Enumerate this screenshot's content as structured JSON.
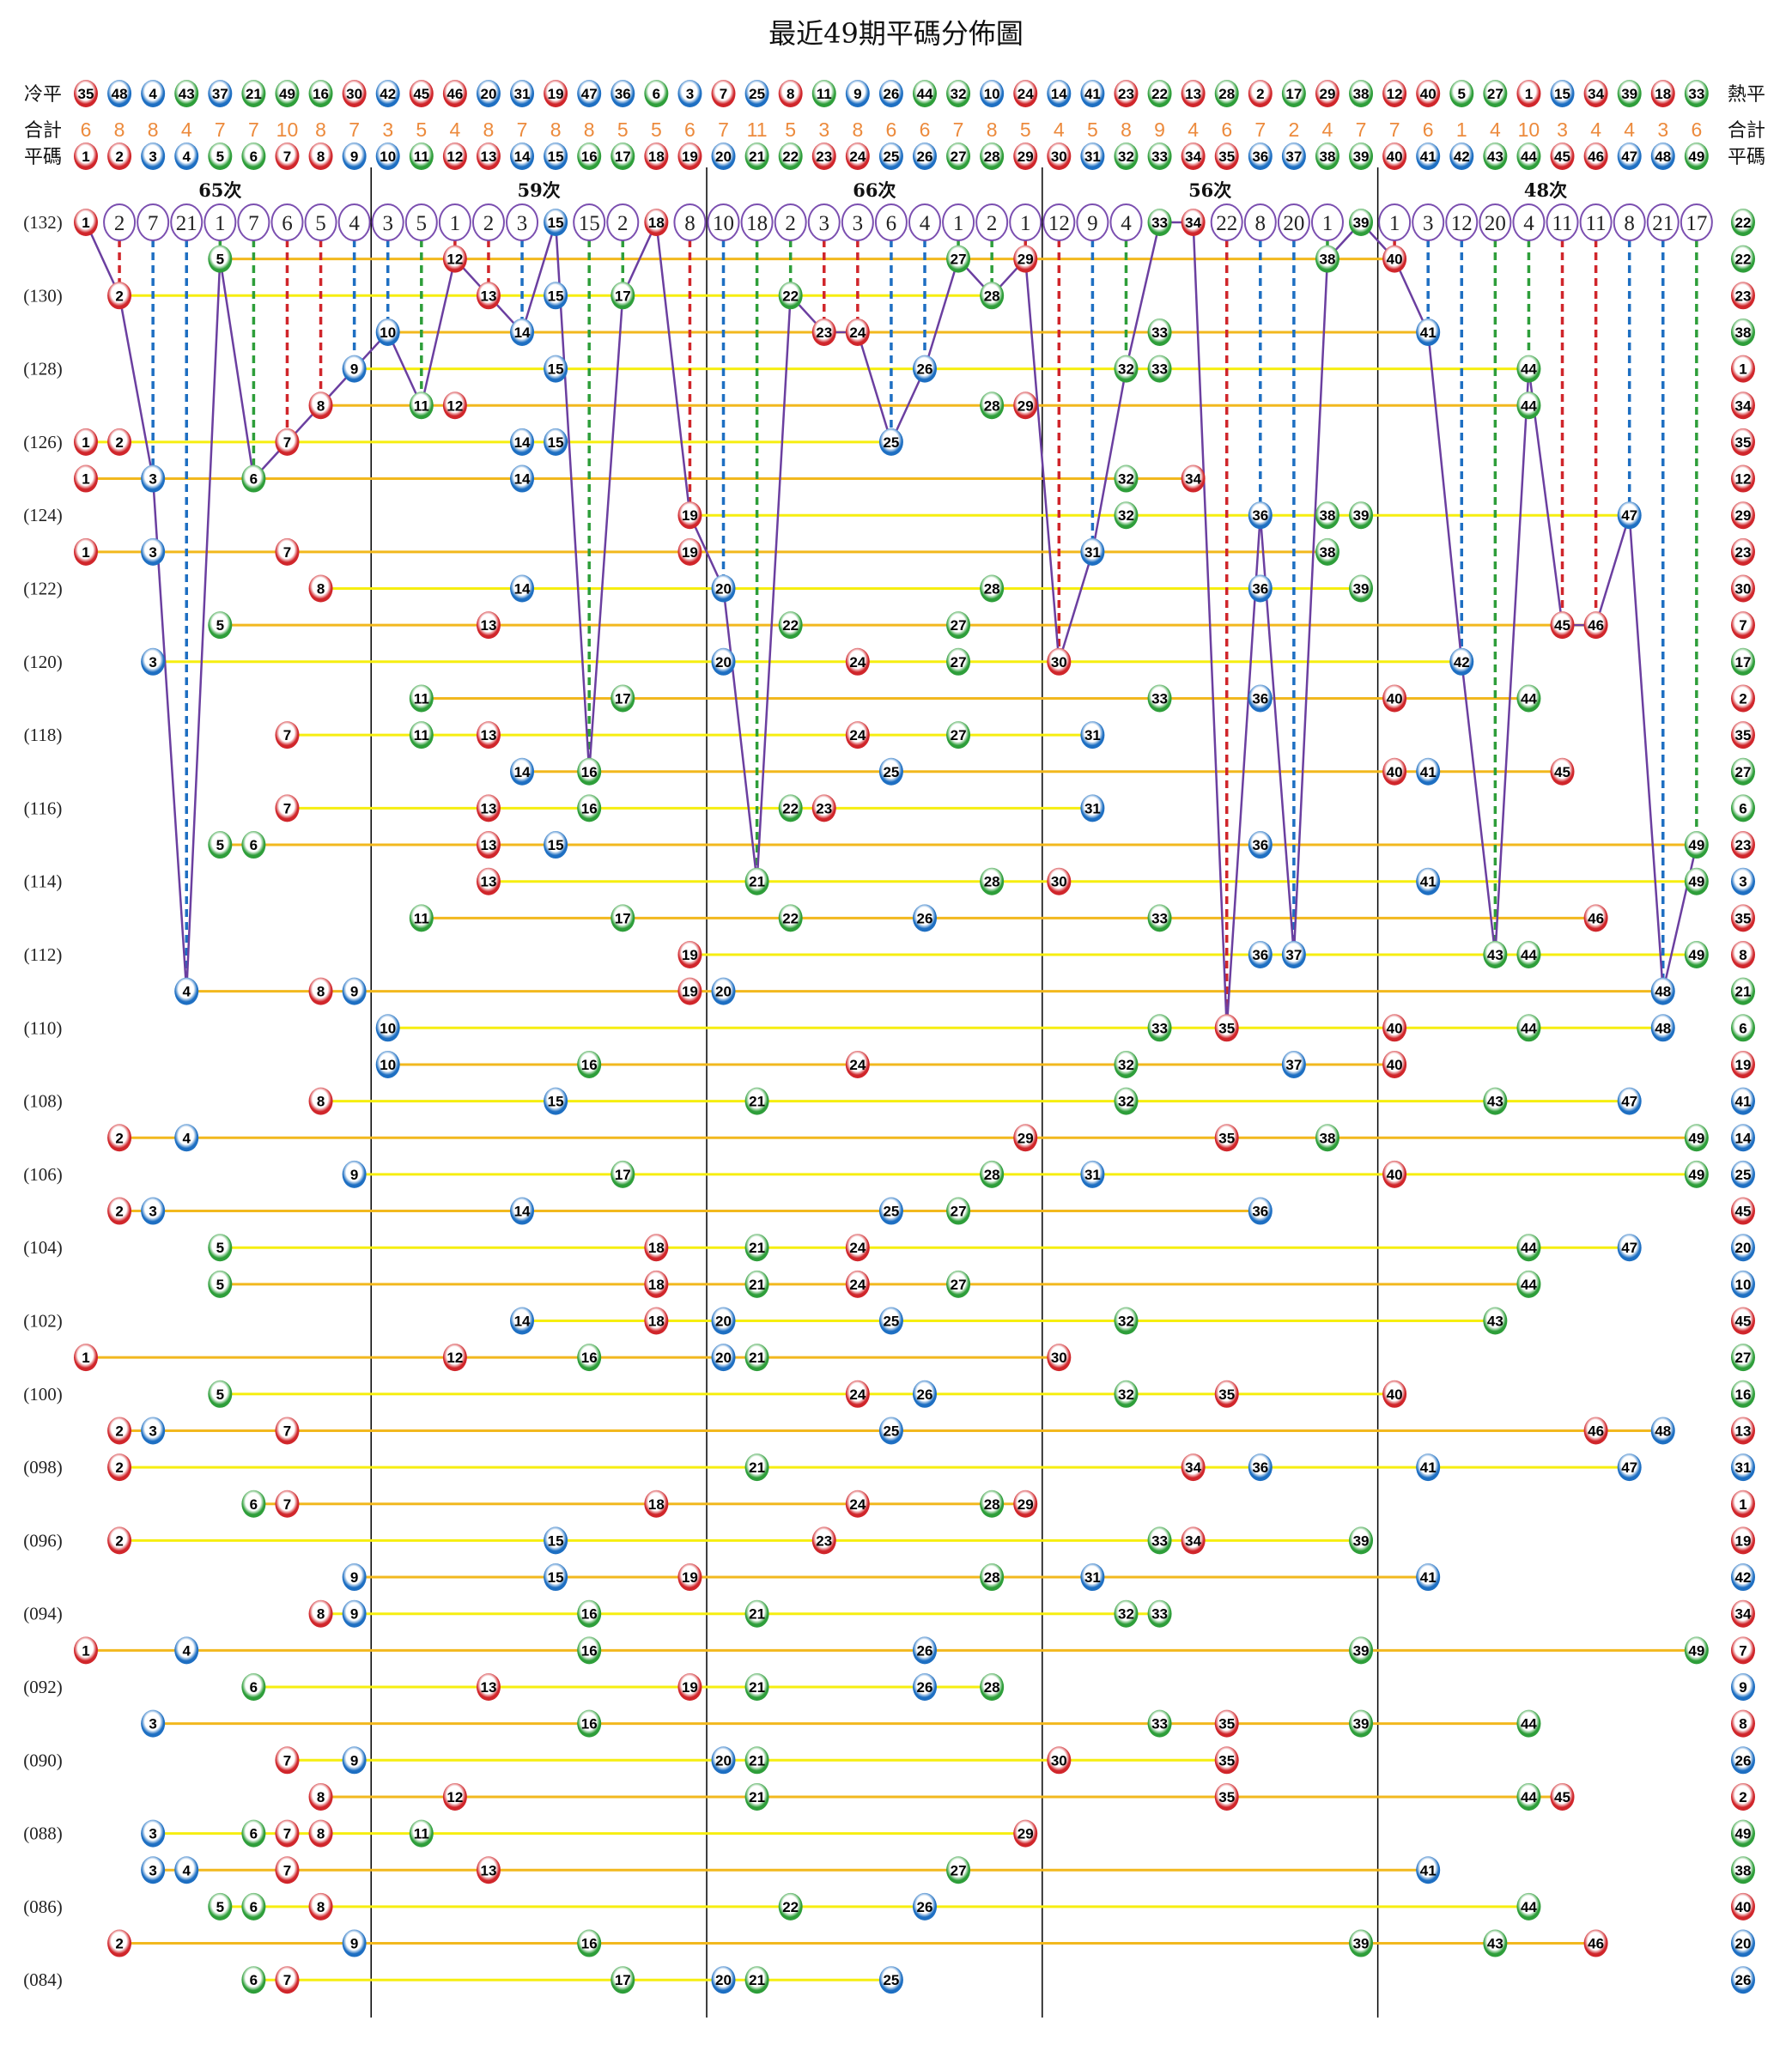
{
  "title": "最近49期平碼分佈圖",
  "labels": {
    "cold": "冷平",
    "hot": "熱平",
    "total": "合計",
    "numbers": "平碼"
  },
  "colors": {
    "red": "#d0262b",
    "blue": "#1e6fc2",
    "green": "#2e9e3a",
    "odd_row_line": "#f2b81e",
    "even_row_line": "#f6ee10",
    "trend_line": "#6b3fa0",
    "total_text": "#ec8a3c",
    "omission_circle": "#7b4fb0"
  },
  "ball_colors": {
    "red": [
      1,
      2,
      7,
      8,
      12,
      13,
      18,
      19,
      23,
      24,
      29,
      30,
      34,
      35,
      40,
      45,
      46
    ],
    "blue": [
      3,
      4,
      9,
      10,
      14,
      15,
      20,
      25,
      26,
      31,
      36,
      37,
      41,
      42,
      47,
      48
    ],
    "green": [
      5,
      6,
      11,
      16,
      17,
      21,
      22,
      27,
      28,
      32,
      33,
      38,
      39,
      43,
      44,
      49
    ]
  },
  "chart_data": {
    "type": "table",
    "title": "最近49期平碼分佈圖",
    "cold_order": [
      35,
      48,
      4,
      43,
      37,
      21,
      49,
      16,
      30,
      42,
      45,
      46,
      20,
      31,
      19,
      47,
      36,
      6,
      3,
      7,
      25,
      8,
      11,
      9,
      26,
      44,
      32,
      10,
      24,
      14,
      41,
      23,
      22,
      13,
      28,
      2,
      17,
      29,
      38,
      12,
      40,
      5,
      27,
      1,
      15,
      34,
      39,
      18,
      33
    ],
    "numbers": [
      1,
      2,
      3,
      4,
      5,
      6,
      7,
      8,
      9,
      10,
      11,
      12,
      13,
      14,
      15,
      16,
      17,
      18,
      19,
      20,
      21,
      22,
      23,
      24,
      25,
      26,
      27,
      28,
      29,
      30,
      31,
      32,
      33,
      34,
      35,
      36,
      37,
      38,
      39,
      40,
      41,
      42,
      43,
      44,
      45,
      46,
      47,
      48,
      49
    ],
    "totals": [
      6,
      8,
      8,
      4,
      7,
      7,
      10,
      8,
      7,
      3,
      5,
      4,
      8,
      7,
      8,
      8,
      5,
      5,
      6,
      7,
      11,
      5,
      3,
      8,
      6,
      6,
      7,
      8,
      5,
      4,
      5,
      8,
      9,
      4,
      6,
      7,
      2,
      4,
      7,
      7,
      6,
      1,
      4,
      10,
      3,
      4,
      4,
      3,
      6
    ],
    "sections": [
      {
        "label": "65次",
        "from": 1,
        "to": 9
      },
      {
        "label": "59次",
        "from": 10,
        "to": 19
      },
      {
        "label": "66次",
        "from": 20,
        "to": 29
      },
      {
        "label": "56次",
        "from": 30,
        "to": 39
      },
      {
        "label": "48次",
        "from": 40,
        "to": 49
      }
    ],
    "latest_omission": [
      null,
      2,
      7,
      21,
      1,
      7,
      6,
      5,
      4,
      3,
      5,
      1,
      2,
      3,
      null,
      15,
      2,
      null,
      8,
      10,
      18,
      2,
      3,
      3,
      6,
      4,
      1,
      2,
      1,
      12,
      9,
      4,
      null,
      null,
      22,
      8,
      20,
      1,
      null,
      1,
      3,
      12,
      20,
      4,
      11,
      11,
      8,
      21,
      17
    ],
    "periods": [
      {
        "period": 132,
        "label": "(132)",
        "numbers": [
          1,
          15,
          18,
          33,
          34,
          39
        ],
        "hot": 22
      },
      {
        "period": 131,
        "label": "",
        "numbers": [
          5,
          12,
          27,
          29,
          38,
          40
        ],
        "hot": 22
      },
      {
        "period": 130,
        "label": "(130)",
        "numbers": [
          2,
          13,
          15,
          17,
          22,
          28
        ],
        "hot": 23
      },
      {
        "period": 129,
        "label": "",
        "numbers": [
          10,
          14,
          23,
          24,
          33,
          41
        ],
        "hot": 38
      },
      {
        "period": 128,
        "label": "(128)",
        "numbers": [
          9,
          15,
          26,
          32,
          33,
          44
        ],
        "hot": 1
      },
      {
        "period": 127,
        "label": "",
        "numbers": [
          8,
          11,
          12,
          28,
          29,
          44
        ],
        "hot": 34
      },
      {
        "period": 126,
        "label": "(126)",
        "numbers": [
          1,
          2,
          7,
          14,
          15,
          25
        ],
        "hot": 35
      },
      {
        "period": 125,
        "label": "",
        "numbers": [
          1,
          3,
          6,
          14,
          32,
          34
        ],
        "hot": 12
      },
      {
        "period": 124,
        "label": "(124)",
        "numbers": [
          19,
          32,
          36,
          38,
          39,
          47
        ],
        "hot": 29
      },
      {
        "period": 123,
        "label": "",
        "numbers": [
          1,
          3,
          7,
          19,
          31,
          38
        ],
        "hot": 23
      },
      {
        "period": 122,
        "label": "(122)",
        "numbers": [
          8,
          14,
          20,
          28,
          36,
          39
        ],
        "hot": 30
      },
      {
        "period": 121,
        "label": "",
        "numbers": [
          5,
          13,
          22,
          27,
          45,
          46
        ],
        "hot": 7
      },
      {
        "period": 120,
        "label": "(120)",
        "numbers": [
          3,
          20,
          24,
          27,
          30,
          42
        ],
        "hot": 17
      },
      {
        "period": 119,
        "label": "",
        "numbers": [
          11,
          17,
          33,
          36,
          40,
          44
        ],
        "hot": 2
      },
      {
        "period": 118,
        "label": "(118)",
        "numbers": [
          7,
          11,
          13,
          24,
          27,
          31
        ],
        "hot": 35
      },
      {
        "period": 117,
        "label": "",
        "numbers": [
          14,
          16,
          25,
          40,
          41,
          45
        ],
        "hot": 27
      },
      {
        "period": 116,
        "label": "(116)",
        "numbers": [
          7,
          13,
          16,
          22,
          23,
          31
        ],
        "hot": 6
      },
      {
        "period": 115,
        "label": "",
        "numbers": [
          5,
          6,
          13,
          15,
          36,
          49
        ],
        "hot": 23
      },
      {
        "period": 114,
        "label": "(114)",
        "numbers": [
          13,
          21,
          28,
          30,
          41,
          49
        ],
        "hot": 3
      },
      {
        "period": 113,
        "label": "",
        "numbers": [
          11,
          17,
          22,
          26,
          33,
          46
        ],
        "hot": 35
      },
      {
        "period": 112,
        "label": "(112)",
        "numbers": [
          19,
          36,
          37,
          43,
          44,
          49
        ],
        "hot": 8
      },
      {
        "period": 111,
        "label": "",
        "numbers": [
          4,
          8,
          9,
          19,
          20,
          48
        ],
        "hot": 21
      },
      {
        "period": 110,
        "label": "(110)",
        "numbers": [
          10,
          33,
          35,
          40,
          44,
          48
        ],
        "hot": 6
      },
      {
        "period": 109,
        "label": "",
        "numbers": [
          10,
          16,
          24,
          32,
          37,
          40
        ],
        "hot": 19
      },
      {
        "period": 108,
        "label": "(108)",
        "numbers": [
          8,
          15,
          21,
          32,
          43,
          47
        ],
        "hot": 41
      },
      {
        "period": 107,
        "label": "",
        "numbers": [
          2,
          4,
          29,
          35,
          38,
          49
        ],
        "hot": 14
      },
      {
        "period": 106,
        "label": "(106)",
        "numbers": [
          9,
          17,
          28,
          31,
          40,
          49
        ],
        "hot": 25
      },
      {
        "period": 105,
        "label": "",
        "numbers": [
          2,
          3,
          14,
          25,
          27,
          36
        ],
        "hot": 45
      },
      {
        "period": 104,
        "label": "(104)",
        "numbers": [
          5,
          18,
          21,
          24,
          44,
          47
        ],
        "hot": 20
      },
      {
        "period": 103,
        "label": "",
        "numbers": [
          5,
          18,
          21,
          24,
          27,
          44
        ],
        "hot": 10
      },
      {
        "period": 102,
        "label": "(102)",
        "numbers": [
          14,
          18,
          20,
          25,
          32,
          43
        ],
        "hot": 45
      },
      {
        "period": 101,
        "label": "",
        "numbers": [
          1,
          12,
          16,
          20,
          21,
          30
        ],
        "hot": 27
      },
      {
        "period": 100,
        "label": "(100)",
        "numbers": [
          5,
          24,
          26,
          32,
          35,
          40
        ],
        "hot": 16
      },
      {
        "period": 99,
        "label": "",
        "numbers": [
          2,
          3,
          7,
          25,
          46,
          48
        ],
        "hot": 13
      },
      {
        "period": 98,
        "label": "(098)",
        "numbers": [
          2,
          21,
          34,
          36,
          41,
          47
        ],
        "hot": 31
      },
      {
        "period": 97,
        "label": "",
        "numbers": [
          6,
          7,
          18,
          24,
          28,
          29
        ],
        "hot": 1
      },
      {
        "period": 96,
        "label": "(096)",
        "numbers": [
          2,
          15,
          23,
          33,
          34,
          39
        ],
        "hot": 19
      },
      {
        "period": 95,
        "label": "",
        "numbers": [
          9,
          15,
          19,
          28,
          31,
          41
        ],
        "hot": 42
      },
      {
        "period": 94,
        "label": "(094)",
        "numbers": [
          8,
          9,
          16,
          21,
          32,
          33
        ],
        "hot": 34
      },
      {
        "period": 93,
        "label": "",
        "numbers": [
          1,
          4,
          16,
          26,
          39,
          49
        ],
        "hot": 7
      },
      {
        "period": 92,
        "label": "(092)",
        "numbers": [
          6,
          13,
          19,
          21,
          26,
          28
        ],
        "hot": 9
      },
      {
        "period": 91,
        "label": "",
        "numbers": [
          3,
          16,
          33,
          35,
          39,
          44
        ],
        "hot": 8
      },
      {
        "period": 90,
        "label": "(090)",
        "numbers": [
          7,
          9,
          20,
          21,
          30,
          35
        ],
        "hot": 26
      },
      {
        "period": 89,
        "label": "",
        "numbers": [
          8,
          12,
          21,
          35,
          44,
          45
        ],
        "hot": 2
      },
      {
        "period": 88,
        "label": "(088)",
        "numbers": [
          3,
          6,
          7,
          8,
          11,
          29
        ],
        "hot": 49
      },
      {
        "period": 87,
        "label": "",
        "numbers": [
          3,
          4,
          7,
          13,
          27,
          41
        ],
        "hot": 38
      },
      {
        "period": 86,
        "label": "(086)",
        "numbers": [
          5,
          6,
          8,
          22,
          26,
          44
        ],
        "hot": 40
      },
      {
        "period": 85,
        "label": "",
        "numbers": [
          2,
          9,
          16,
          39,
          43,
          46
        ],
        "hot": 20
      },
      {
        "period": 84,
        "label": "(084)",
        "numbers": [
          6,
          7,
          17,
          20,
          21,
          25
        ],
        "hot": 26
      }
    ]
  }
}
